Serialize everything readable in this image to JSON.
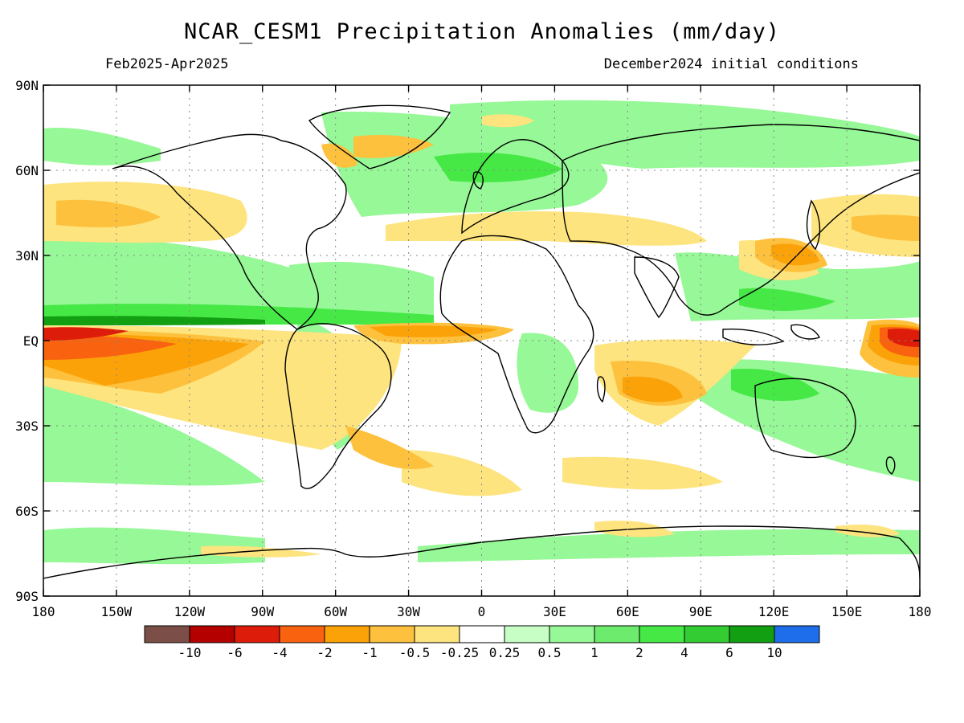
{
  "title": "NCAR_CESM1 Precipitation Anomalies (mm/day)",
  "period": "Feb2025-Apr2025",
  "init": "December2024 initial conditions",
  "lat_labels": [
    "90N",
    "60N",
    "30N",
    "EQ",
    "30S",
    "60S",
    "90S"
  ],
  "lon_labels": [
    "180",
    "150W",
    "120W",
    "90W",
    "60W",
    "30W",
    "0",
    "30E",
    "60E",
    "90E",
    "120E",
    "150E",
    "180"
  ],
  "colorbar": {
    "colors": [
      "#7b4f48",
      "#b50000",
      "#de1c0a",
      "#f9620f",
      "#fba208",
      "#fdc13e",
      "#fde47e",
      "#ffffff",
      "#c6fec6",
      "#96f896",
      "#6ceb6c",
      "#46e846",
      "#33cc33",
      "#129f12",
      "#1e6eeb"
    ],
    "labels": [
      "-10",
      "-6",
      "-4",
      "-2",
      "-1",
      "-0.5",
      "-0.25",
      "0.25",
      "0.5",
      "1",
      "2",
      "4",
      "6",
      "10"
    ]
  }
}
